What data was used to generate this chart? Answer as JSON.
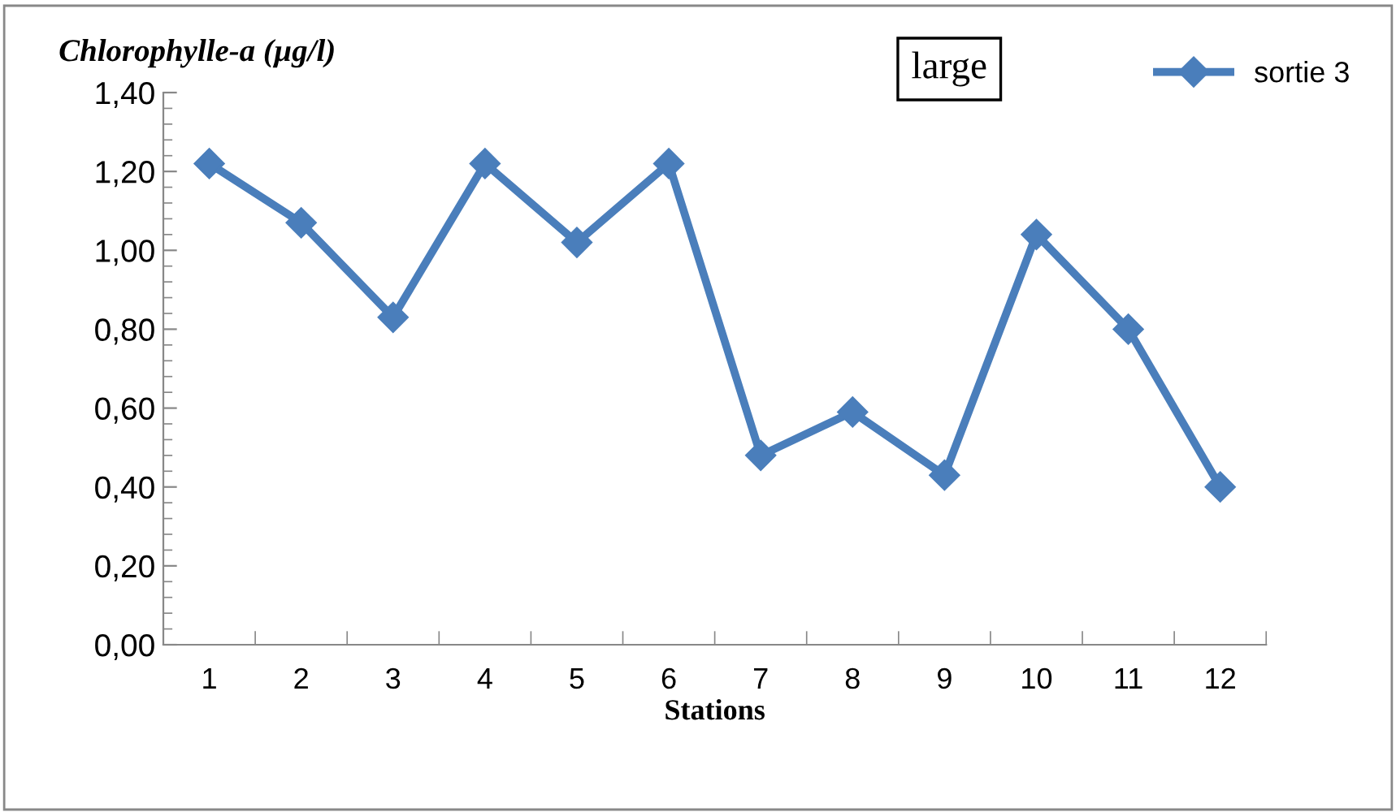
{
  "chart_data": {
    "type": "line",
    "ylabel": "Chlorophylle-a (µg/l)",
    "xlabel": "Stations",
    "categories": [
      "1",
      "2",
      "3",
      "4",
      "5",
      "6",
      "7",
      "8",
      "9",
      "10",
      "11",
      "12"
    ],
    "series": [
      {
        "name": "sortie 3",
        "color": "#4a7ebb",
        "values": [
          1.22,
          1.07,
          0.83,
          1.22,
          1.02,
          1.22,
          0.48,
          0.59,
          0.43,
          1.04,
          0.8,
          0.4
        ]
      }
    ],
    "ylim": [
      0,
      1.4
    ],
    "yticks": [
      {
        "value": 0,
        "label": "0,00"
      },
      {
        "value": 0.2,
        "label": "0,20"
      },
      {
        "value": 0.4,
        "label": "0,40"
      },
      {
        "value": 0.6,
        "label": "0,60"
      },
      {
        "value": 0.8,
        "label": "0,80"
      },
      {
        "value": 1.0,
        "label": "1,00"
      },
      {
        "value": 1.2,
        "label": "1,20"
      },
      {
        "value": 1.4,
        "label": "1,40"
      }
    ],
    "annotations": [
      "large"
    ],
    "legend": "top right",
    "marker": "diamond",
    "line_style": "solid",
    "grid": false
  }
}
